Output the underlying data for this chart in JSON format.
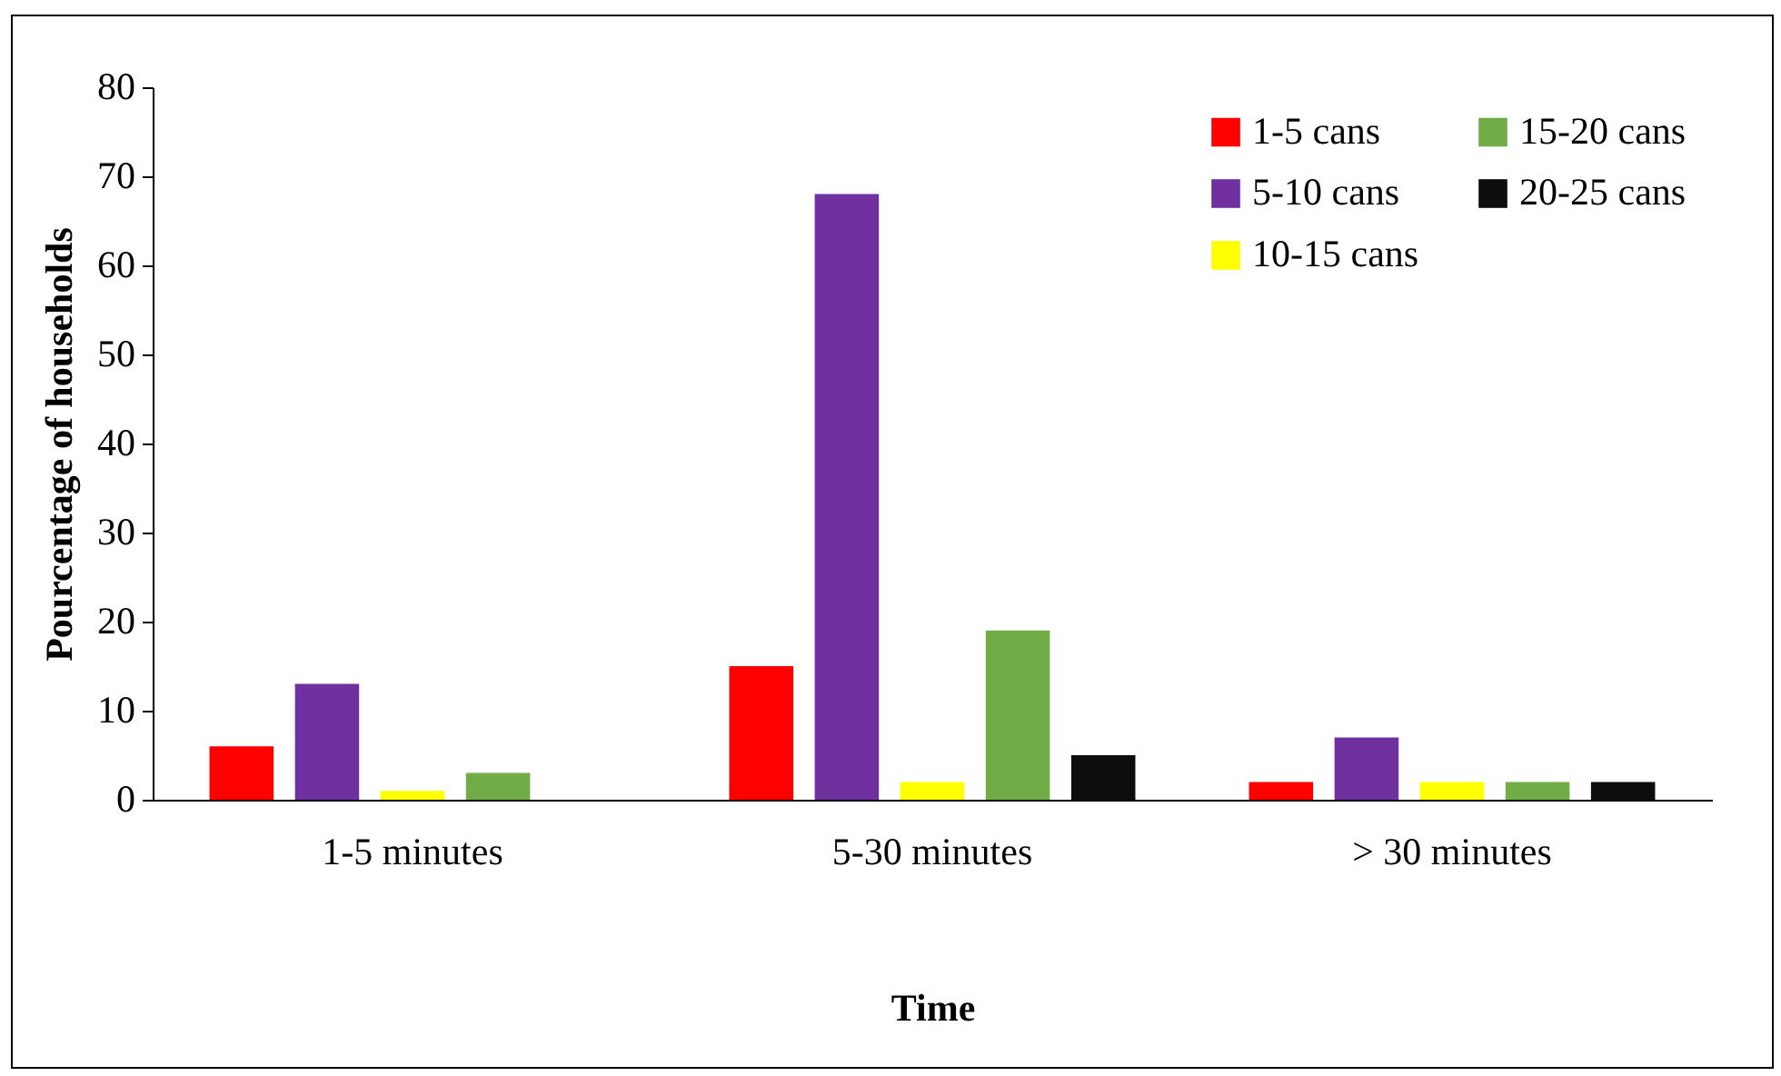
{
  "chart_data": {
    "type": "bar",
    "xlabel": "Time",
    "ylabel": "Pourcentage  of  households",
    "categories": [
      "1-5 minutes",
      "5-30 minutes",
      "> 30 minutes"
    ],
    "series": [
      {
        "name": "1-5 cans",
        "color": "#ff0000",
        "values": [
          6,
          15,
          2
        ]
      },
      {
        "name": "5-10 cans",
        "color": "#7030a0",
        "values": [
          13,
          68,
          7
        ]
      },
      {
        "name": "10-15 cans",
        "color": "#ffff00",
        "values": [
          1,
          2,
          2
        ]
      },
      {
        "name": "15-20 cans",
        "color": "#70ad47",
        "values": [
          3,
          19,
          2
        ]
      },
      {
        "name": "20-25 cans",
        "color": "#0d0d0d",
        "values": [
          null,
          5,
          2
        ]
      }
    ],
    "ylim": [
      0,
      80
    ],
    "yticks": [
      0,
      10,
      20,
      30,
      40,
      50,
      60,
      70,
      80
    ],
    "grid": false,
    "legend": "top right"
  }
}
